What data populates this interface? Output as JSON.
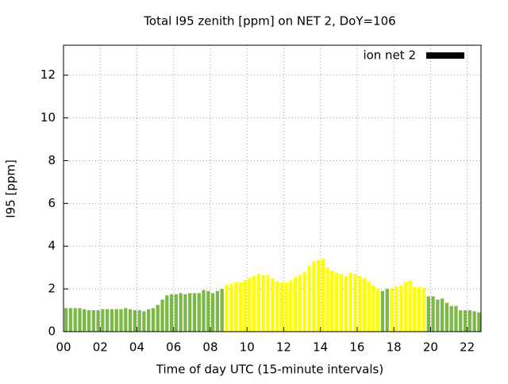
{
  "chart_data": {
    "type": "bar",
    "title": "Total I95 zenith [ppm] on NET 2, DoY=106",
    "xlabel": "Time of day UTC (15-minute intervals)",
    "ylabel": "I95 [ppm]",
    "x": [
      0,
      0.25,
      0.5,
      0.75,
      1,
      1.25,
      1.5,
      1.75,
      2,
      2.25,
      2.5,
      2.75,
      3,
      3.25,
      3.5,
      3.75,
      4,
      4.25,
      4.5,
      4.75,
      5,
      5.25,
      5.5,
      5.75,
      6,
      6.25,
      6.5,
      6.75,
      7,
      7.25,
      7.5,
      7.75,
      8,
      8.25,
      8.5,
      8.75,
      9,
      9.25,
      9.5,
      9.75,
      10,
      10.25,
      10.5,
      10.75,
      11,
      11.25,
      11.5,
      11.75,
      12,
      12.25,
      12.5,
      12.75,
      13,
      13.25,
      13.5,
      13.75,
      14,
      14.25,
      14.5,
      14.75,
      15,
      15.25,
      15.5,
      15.75,
      16,
      16.25,
      16.5,
      16.75,
      17,
      17.25,
      17.5,
      17.75,
      18,
      18.25,
      18.5,
      18.75,
      19,
      19.25,
      19.5,
      19.75,
      20,
      20.25,
      20.5,
      20.75,
      21,
      21.25,
      21.5,
      21.75,
      22,
      22.25,
      22.5
    ],
    "series": [
      {
        "name": "ion net 2",
        "color": "#000000",
        "values": [
          1.1,
          1.1,
          1.1,
          1.1,
          1.05,
          1.0,
          1.0,
          1.0,
          1.05,
          1.05,
          1.05,
          1.05,
          1.05,
          1.1,
          1.05,
          1.0,
          1.0,
          0.95,
          1.05,
          1.1,
          1.25,
          1.5,
          1.7,
          1.75,
          1.75,
          1.8,
          1.75,
          1.8,
          1.8,
          1.8,
          1.95,
          1.9,
          1.8,
          1.9,
          2.0,
          2.2,
          2.25,
          2.3,
          2.3,
          2.4,
          2.5,
          2.6,
          2.7,
          2.65,
          2.65,
          2.5,
          2.35,
          2.3,
          2.3,
          2.4,
          2.55,
          2.65,
          2.8,
          3.1,
          3.3,
          3.35,
          3.4,
          3.0,
          2.85,
          2.75,
          2.7,
          2.6,
          2.75,
          2.7,
          2.6,
          2.5,
          2.35,
          2.15,
          2.0,
          1.9,
          2.0,
          2.05,
          2.1,
          2.15,
          2.3,
          2.4,
          2.1,
          2.1,
          2.05,
          1.65,
          1.65,
          1.5,
          1.55,
          1.35,
          1.2,
          1.2,
          1.0,
          1.0,
          1.0,
          0.95,
          0.9
        ],
        "colors": [
          "#7cb848",
          "#7cb848",
          "#7cb848",
          "#7cb848",
          "#7cb848",
          "#7cb848",
          "#7cb848",
          "#7cb848",
          "#7cb848",
          "#7cb848",
          "#7cb848",
          "#7cb848",
          "#7cb848",
          "#7cb848",
          "#7cb848",
          "#7cb848",
          "#7cb848",
          "#7cb848",
          "#7cb848",
          "#7cb848",
          "#7cb848",
          "#7cb848",
          "#7cb848",
          "#7cb848",
          "#7cb848",
          "#7cb848",
          "#7cb848",
          "#7cb848",
          "#7cb848",
          "#7cb848",
          "#7cb848",
          "#7cb848",
          "#7cb848",
          "#7cb848",
          "#7cb848",
          "#ffff00",
          "#ffff00",
          "#ffff00",
          "#ffff00",
          "#ffff00",
          "#ffff00",
          "#ffff00",
          "#ffff00",
          "#ffff00",
          "#ffff00",
          "#ffff00",
          "#ffff00",
          "#ffff00",
          "#ffff00",
          "#ffff00",
          "#ffff00",
          "#ffff00",
          "#ffff00",
          "#ffff00",
          "#ffff00",
          "#ffff00",
          "#ffff00",
          "#ffff00",
          "#ffff00",
          "#ffff00",
          "#ffff00",
          "#ffff00",
          "#ffff00",
          "#ffff00",
          "#ffff00",
          "#ffff00",
          "#ffff00",
          "#ffff00",
          "#ffff00",
          "#7cb848",
          "#7cb848",
          "#ffff00",
          "#ffff00",
          "#ffff00",
          "#ffff00",
          "#ffff00",
          "#ffff00",
          "#ffff00",
          "#ffff00",
          "#7cb848",
          "#7cb848",
          "#7cb848",
          "#7cb848",
          "#7cb848",
          "#7cb848",
          "#7cb848",
          "#7cb848",
          "#7cb848",
          "#7cb848",
          "#7cb848",
          "#7cb848"
        ]
      }
    ],
    "xlim": [
      0,
      22.75
    ],
    "xticks": [
      {
        "value": 0,
        "label": "00"
      },
      {
        "value": 2,
        "label": "02"
      },
      {
        "value": 4,
        "label": "04"
      },
      {
        "value": 6,
        "label": "06"
      },
      {
        "value": 8,
        "label": "08"
      },
      {
        "value": 10,
        "label": "10"
      },
      {
        "value": 12,
        "label": "12"
      },
      {
        "value": 14,
        "label": "14"
      },
      {
        "value": 16,
        "label": "16"
      },
      {
        "value": 18,
        "label": "18"
      },
      {
        "value": 20,
        "label": "20"
      },
      {
        "value": 22,
        "label": "22"
      }
    ],
    "ylim": [
      0,
      13.4
    ],
    "yticks": [
      0,
      2,
      4,
      6,
      8,
      10,
      12
    ],
    "grid": true,
    "legend": "top right"
  }
}
